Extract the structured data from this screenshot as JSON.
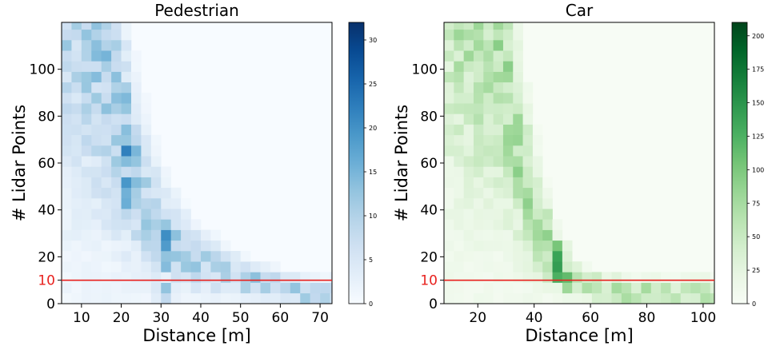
{
  "chart_data": [
    {
      "type": "heatmap",
      "title": "Pedestrian",
      "xlabel": "Distance [m]",
      "ylabel": "# Lidar Points",
      "xlim": [
        5,
        73
      ],
      "ylim": [
        0,
        120
      ],
      "xticks": [
        10,
        20,
        30,
        40,
        50,
        60,
        70
      ],
      "yticks": [
        0,
        20,
        40,
        60,
        80,
        100
      ],
      "threshold": {
        "label": "10",
        "value": 10,
        "color": "#e8211e"
      },
      "colormap": "Blues",
      "colorbar": {
        "min": 0,
        "max": 32,
        "ticks": [
          0,
          5,
          10,
          15,
          20,
          25,
          30
        ]
      },
      "bin_size": {
        "x": 2.5,
        "y": 4.5
      },
      "ridge": {
        "x": [
          12,
          15,
          18,
          21,
          24,
          27,
          30,
          33,
          36,
          40,
          45,
          50,
          55,
          60,
          65,
          70
        ],
        "y": [
          120,
          105,
          88,
          70,
          52,
          40,
          32,
          26,
          22,
          17,
          14,
          11,
          9,
          7,
          5,
          4
        ]
      },
      "hotspots": [
        {
          "x": 31,
          "y": 27,
          "count": 31
        },
        {
          "x": 22,
          "y": 66,
          "count": 30
        },
        {
          "x": 22,
          "y": 50,
          "count": 28
        },
        {
          "x": 20,
          "y": 86,
          "count": 24
        },
        {
          "x": 13,
          "y": 110,
          "count": 18
        },
        {
          "x": 17,
          "y": 104,
          "count": 20
        },
        {
          "x": 22,
          "y": 42,
          "count": 20
        },
        {
          "x": 31,
          "y": 18,
          "count": 18
        },
        {
          "x": 31,
          "y": 5,
          "count": 15
        }
      ]
    },
    {
      "type": "heatmap",
      "title": "Car",
      "xlabel": "Distance [m]",
      "ylabel": "# Lidar Points",
      "xlim": [
        8,
        104
      ],
      "ylim": [
        0,
        120
      ],
      "xticks": [
        20,
        40,
        60,
        80,
        100
      ],
      "yticks": [
        0,
        20,
        40,
        60,
        80,
        100
      ],
      "threshold": {
        "label": "10",
        "value": 10,
        "color": "#e8211e"
      },
      "colormap": "Greens",
      "colorbar": {
        "min": 0,
        "max": 210,
        "ticks": [
          0,
          25,
          50,
          75,
          100,
          125,
          150,
          175,
          200
        ]
      },
      "bin_size": {
        "x": 3.5,
        "y": 4.5
      },
      "ridge": {
        "x": [
          20,
          27,
          30,
          33,
          36,
          40,
          44,
          48,
          52,
          56,
          62,
          70,
          76
        ],
        "y": [
          120,
          118,
          95,
          72,
          55,
          40,
          28,
          18,
          12,
          9,
          7,
          5,
          4
        ]
      },
      "hotspots": [
        {
          "x": 48,
          "y": 14,
          "count": 205
        },
        {
          "x": 48,
          "y": 22,
          "count": 160
        },
        {
          "x": 52,
          "y": 10,
          "count": 150
        },
        {
          "x": 44,
          "y": 28,
          "count": 120
        },
        {
          "x": 40,
          "y": 35,
          "count": 110
        },
        {
          "x": 35,
          "y": 50,
          "count": 100
        },
        {
          "x": 60,
          "y": 8,
          "count": 100
        }
      ]
    }
  ]
}
